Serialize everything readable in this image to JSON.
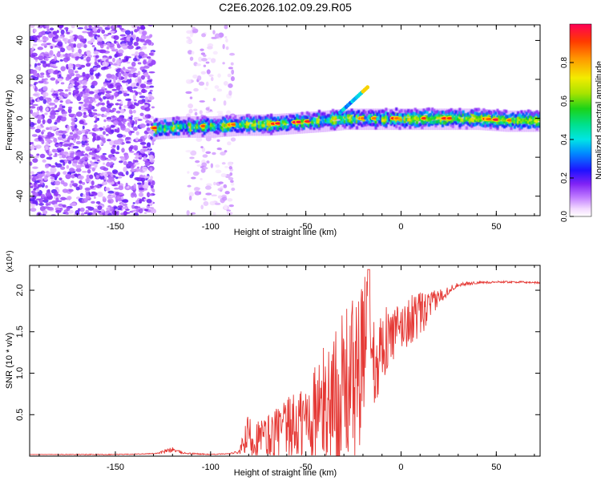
{
  "title": "C2E6.2026.102.09.29.R05",
  "chart_data": [
    {
      "type": "heatmap",
      "title": "C2E6.2026.102.09.29.R05",
      "xlabel": "Height of straight line (km)",
      "ylabel": "Frequency (Hz)",
      "xlim": [
        -195,
        73
      ],
      "ylim": [
        -50,
        48
      ],
      "x_ticks": [
        -150,
        -100,
        -50,
        0,
        50
      ],
      "x_tick_labels": [
        "-150",
        "-100",
        "-50",
        "0",
        "50"
      ],
      "y_ticks": [
        -40,
        -20,
        0,
        20,
        40
      ],
      "y_tick_labels": [
        "-40",
        "-20",
        "0",
        "20",
        "40"
      ],
      "colorbar": {
        "label": "Normalized spectral amplitude",
        "range": [
          0,
          1
        ],
        "ticks": [
          0.0,
          0.2,
          0.4,
          0.6,
          0.8
        ],
        "tick_labels": [
          "0.0",
          "0.2",
          "0.4",
          "0.6",
          "0.8"
        ]
      },
      "regions": [
        {
          "name": "scattered noise",
          "x_range": [
            -195,
            -130
          ],
          "y_range": [
            -50,
            48
          ],
          "amplitude": [
            0.05,
            0.2
          ]
        },
        {
          "name": "sparse noise",
          "x_range": [
            -112,
            -88
          ],
          "y_range": [
            -50,
            48
          ],
          "amplitude": [
            0.02,
            0.1
          ]
        },
        {
          "name": "signal band",
          "x_range": [
            -130,
            73
          ],
          "center_freq_hz": [
            -5,
            -4,
            -4,
            -3,
            -3,
            -2,
            -1,
            0,
            0,
            0,
            0,
            0,
            0,
            0,
            -1,
            -1
          ],
          "center_x_km": [
            -130,
            -115,
            -100,
            -85,
            -70,
            -55,
            -40,
            -30,
            -20,
            -10,
            0,
            10,
            25,
            40,
            55,
            73
          ],
          "amplitude": [
            0.3,
            1.0
          ]
        }
      ]
    },
    {
      "type": "line",
      "xlabel": "Height of straight line (km)",
      "ylabel": "SNR (10 * v/v)",
      "y_multiplier": "(x10⁴)",
      "xlim": [
        -195,
        73
      ],
      "ylim": [
        0,
        2.3
      ],
      "x_ticks": [
        -150,
        -100,
        -50,
        0,
        50
      ],
      "x_tick_labels": [
        "-150",
        "-100",
        "-50",
        "0",
        "50"
      ],
      "y_ticks": [
        0.5,
        1.0,
        1.5,
        2.0
      ],
      "y_tick_labels": [
        "0.5",
        "1.0",
        "1.5",
        "2.0"
      ],
      "series": [
        {
          "name": "SNR",
          "color": "#e53935",
          "x": [
            -195,
            -170,
            -150,
            -130,
            -125,
            -120,
            -115,
            -110,
            -100,
            -90,
            -85,
            -80,
            -75,
            -70,
            -65,
            -60,
            -55,
            -50,
            -45,
            -40,
            -35,
            -30,
            -25,
            -20,
            -17,
            -15,
            -10,
            -5,
            0,
            5,
            10,
            15,
            20,
            25,
            30,
            40,
            50,
            60,
            73
          ],
          "values": [
            0.02,
            0.02,
            0.02,
            0.03,
            0.05,
            0.08,
            0.04,
            0.03,
            0.02,
            0.03,
            0.05,
            0.25,
            0.2,
            0.22,
            0.28,
            0.3,
            0.35,
            0.42,
            0.5,
            0.6,
            0.7,
            0.8,
            0.95,
            1.0,
            2.25,
            1.1,
            1.35,
            1.45,
            1.55,
            1.65,
            1.7,
            1.8,
            1.92,
            2.0,
            2.07,
            2.09,
            2.1,
            2.1,
            2.09
          ],
          "noise_amplitude": [
            0.0,
            0.005,
            0.005,
            0.005,
            0.02,
            0.03,
            0.01,
            0.01,
            0.005,
            0.005,
            0.02,
            0.3,
            0.25,
            0.3,
            0.35,
            0.4,
            0.45,
            0.55,
            0.65,
            0.75,
            0.85,
            0.95,
            1.0,
            1.1,
            0.2,
            0.6,
            0.45,
            0.35,
            0.3,
            0.3,
            0.28,
            0.18,
            0.1,
            0.05,
            0.025,
            0.015,
            0.012,
            0.012,
            0.012
          ]
        }
      ]
    }
  ]
}
